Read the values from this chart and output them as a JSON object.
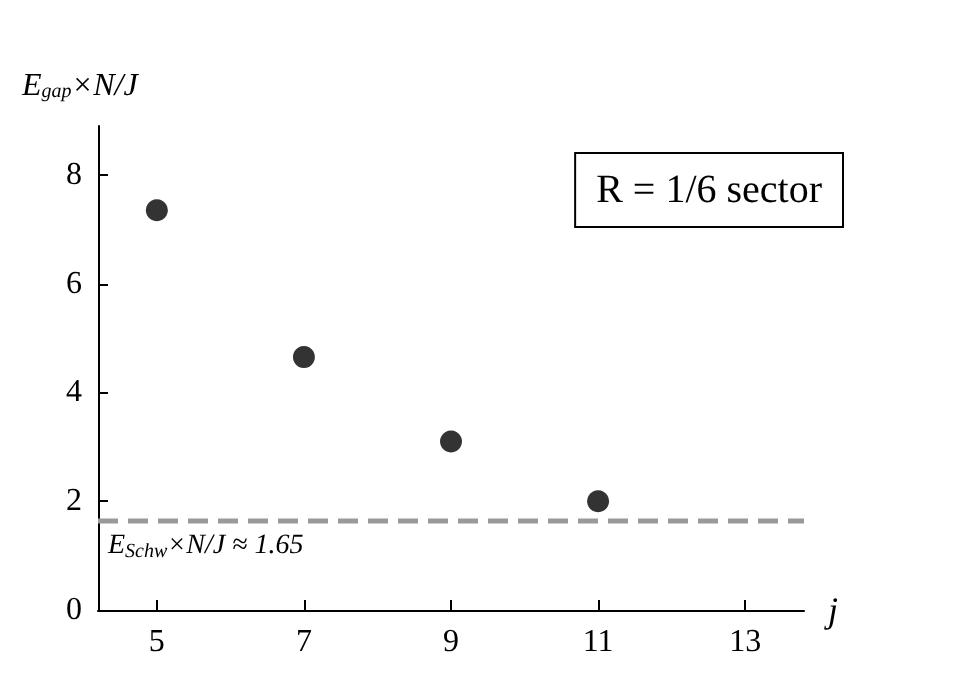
{
  "chart_data": {
    "type": "scatter",
    "xlabel": "j",
    "ylabel": "E$_{gap}$×N/J",
    "x": [
      5,
      7,
      9,
      11
    ],
    "values": [
      7.35,
      4.65,
      3.1,
      2.0
    ],
    "color": "#000000",
    "marker": "circle",
    "xlim": [
      4.2,
      13.8
    ],
    "xticks": [
      5,
      7,
      9,
      11,
      13
    ],
    "ylim": [
      0,
      8.9
    ],
    "yticks": [
      0,
      2,
      4,
      6,
      8
    ],
    "grid": false,
    "ref_lines": [
      {
        "axis": "y",
        "value": 1.65,
        "label": "E$_{Schw}$×N/J ≈ 1.65",
        "color": "#999999",
        "line_style": "dashed"
      }
    ],
    "annotations": [
      "R = 1/6 sector"
    ]
  }
}
